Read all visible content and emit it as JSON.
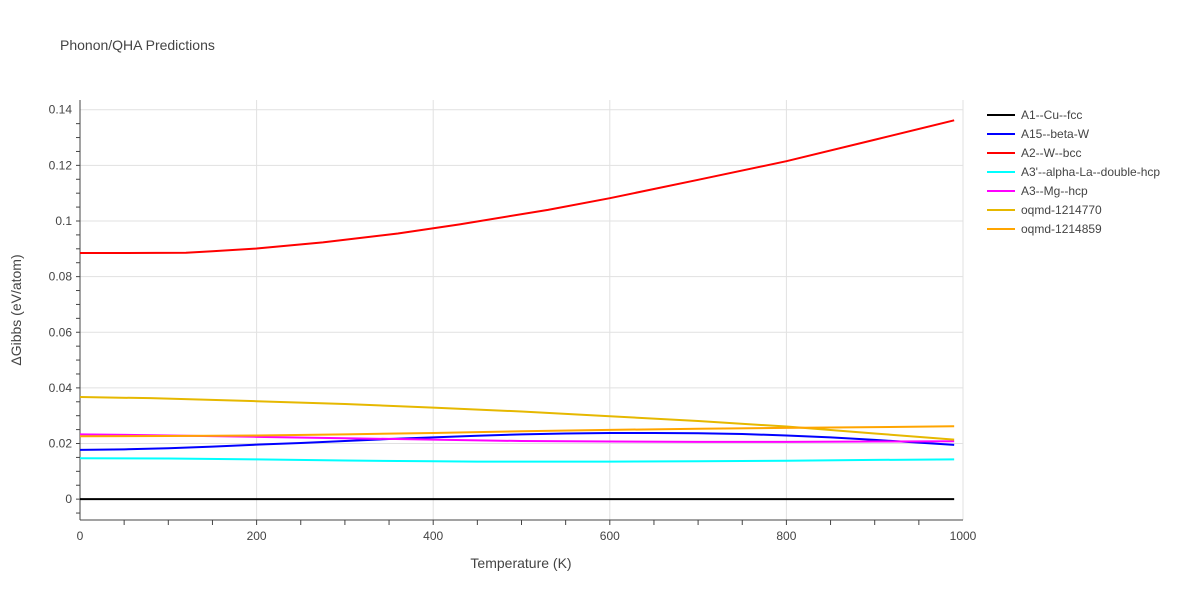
{
  "chart_data": {
    "type": "line",
    "title": "Phonon/QHA Predictions",
    "xlabel": "Temperature (K)",
    "ylabel": "ΔGibbs (eV/atom)",
    "xlim": [
      0,
      1000
    ],
    "ylim": [
      -0.0075,
      0.1435
    ],
    "x_ticks": [
      0,
      200,
      400,
      600,
      800,
      1000
    ],
    "x_tick_labels": [
      "0",
      "200",
      "400",
      "600",
      "800",
      "1000"
    ],
    "y_ticks": [
      0,
      0.02,
      0.04,
      0.06,
      0.08,
      0.1,
      0.12,
      0.14
    ],
    "y_tick_labels": [
      "0",
      "0.02",
      "0.04",
      "0.06",
      "0.08",
      "0.1",
      "0.12",
      "0.14"
    ],
    "grid": true,
    "legend_position": "right",
    "series": [
      {
        "name": "A1--Cu--fcc",
        "color": "#000000",
        "x": [
          0,
          100,
          200,
          300,
          400,
          500,
          600,
          700,
          800,
          900,
          990
        ],
        "y": [
          0,
          0,
          0,
          0,
          0,
          0,
          0,
          0,
          0,
          0,
          0
        ]
      },
      {
        "name": "A15--beta-W",
        "color": "#0000ff",
        "x": [
          0,
          50,
          100,
          150,
          200,
          250,
          300,
          350,
          400,
          450,
          500,
          550,
          600,
          650,
          700,
          750,
          800,
          850,
          900,
          950,
          990
        ],
        "y": [
          0.0177,
          0.0179,
          0.0183,
          0.0189,
          0.0196,
          0.0202,
          0.0209,
          0.0216,
          0.0222,
          0.0228,
          0.0233,
          0.0236,
          0.0238,
          0.0238,
          0.0237,
          0.0234,
          0.0229,
          0.0222,
          0.0213,
          0.0203,
          0.0195
        ]
      },
      {
        "name": "A2--W--bcc",
        "color": "#ff0000",
        "x": [
          0,
          50,
          120,
          150,
          200,
          275,
          360,
          430,
          530,
          600,
          700,
          800,
          900,
          990
        ],
        "y": [
          0.0885,
          0.0885,
          0.0886,
          0.0891,
          0.0901,
          0.0923,
          0.0955,
          0.0988,
          0.104,
          0.1082,
          0.1148,
          0.1215,
          0.1292,
          0.1362
        ]
      },
      {
        "name": "A3'--alpha-La--double-hcp",
        "color": "#00ffff",
        "x": [
          0,
          100,
          200,
          300,
          400,
          450,
          500,
          600,
          700,
          800,
          900,
          990
        ],
        "y": [
          0.0147,
          0.0146,
          0.0143,
          0.0139,
          0.0136,
          0.0135,
          0.0135,
          0.0135,
          0.0136,
          0.0138,
          0.0141,
          0.0143
        ]
      },
      {
        "name": "A3--Mg--hcp",
        "color": "#ff00ff",
        "x": [
          0,
          100,
          200,
          300,
          400,
          500,
          600,
          700,
          800,
          900,
          990
        ],
        "y": [
          0.0233,
          0.0229,
          0.0224,
          0.0219,
          0.0214,
          0.0209,
          0.0207,
          0.0206,
          0.0206,
          0.0207,
          0.0208
        ]
      },
      {
        "name": "oqmd-1214770",
        "color": "#e6b800",
        "x": [
          0,
          80,
          200,
          300,
          400,
          500,
          600,
          700,
          800,
          900,
          990
        ],
        "y": [
          0.0367,
          0.0363,
          0.0352,
          0.0342,
          0.0329,
          0.0315,
          0.0298,
          0.0281,
          0.0261,
          0.0236,
          0.0214
        ]
      },
      {
        "name": "oqmd-1214859",
        "color": "#ffa500",
        "x": [
          0,
          100,
          200,
          300,
          400,
          500,
          600,
          700,
          800,
          900,
          990
        ],
        "y": [
          0.0226,
          0.0227,
          0.0229,
          0.0233,
          0.0238,
          0.0244,
          0.0249,
          0.0253,
          0.0256,
          0.0259,
          0.0262
        ]
      }
    ]
  }
}
